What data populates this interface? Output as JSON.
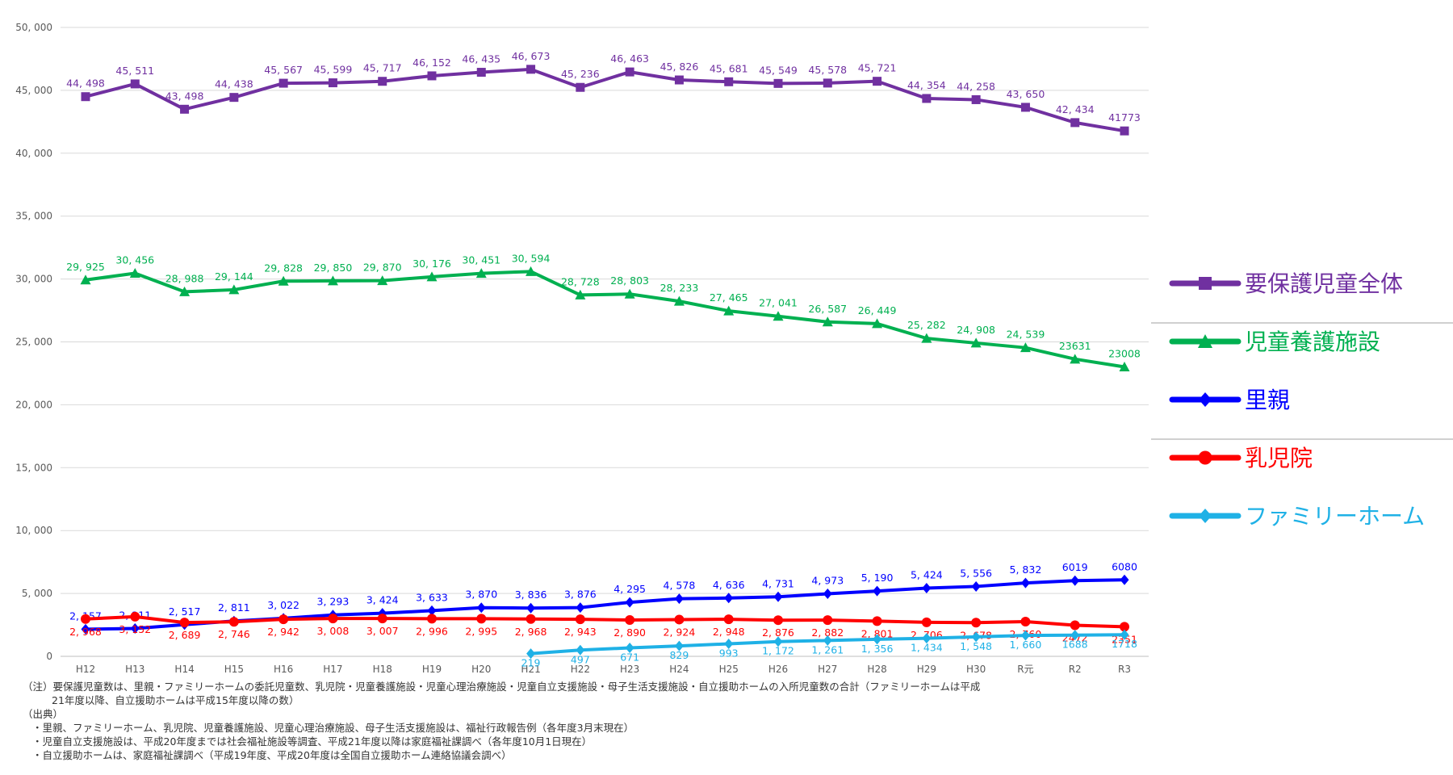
{
  "chart_data": {
    "type": "line",
    "categories": [
      "H12",
      "H13",
      "H14",
      "H15",
      "H16",
      "H17",
      "H18",
      "H19",
      "H20",
      "H21",
      "H22",
      "H23",
      "H24",
      "H25",
      "H26",
      "H27",
      "H28",
      "H29",
      "H30",
      "R元",
      "R2",
      "R3"
    ],
    "ylim": [
      0,
      50000
    ],
    "yticks": [
      "0",
      "5, 000",
      "10, 000",
      "15, 000",
      "20, 000",
      "25, 000",
      "30, 000",
      "35, 000",
      "40, 000",
      "45, 000",
      "50, 000"
    ],
    "grid": true,
    "legend_position": "right",
    "series": [
      {
        "name": "要保護児童全体",
        "color": "#7030a0",
        "marker": "square",
        "values": [
          44498,
          45511,
          43498,
          44438,
          45567,
          45599,
          45717,
          46152,
          46435,
          46673,
          45236,
          46463,
          45826,
          45681,
          45549,
          45578,
          45721,
          44354,
          44258,
          43650,
          42434,
          41773
        ],
        "labels": [
          "44, 498",
          "45, 511",
          "43, 498",
          "44, 438",
          "45, 567",
          "45, 599",
          "45, 717",
          "46, 152",
          "46, 435",
          "46, 673",
          "45, 236",
          "46, 463",
          "45, 826",
          "45, 681",
          "45, 549",
          "45, 578",
          "45, 721",
          "44, 354",
          "44, 258",
          "43, 650",
          "42, 434",
          "41773"
        ]
      },
      {
        "name": "児童養護施設",
        "color": "#00b050",
        "marker": "triangle",
        "values": [
          29925,
          30456,
          28988,
          29144,
          29828,
          29850,
          29870,
          30176,
          30451,
          30594,
          28728,
          28803,
          28233,
          27465,
          27041,
          26587,
          26449,
          25282,
          24908,
          24539,
          23631,
          23008
        ],
        "labels": [
          "29, 925",
          "30, 456",
          "28, 988",
          "29, 144",
          "29, 828",
          "29, 850",
          "29, 870",
          "30, 176",
          "30, 451",
          "30, 594",
          "28, 728",
          "28, 803",
          "28, 233",
          "27, 465",
          "27, 041",
          "26, 587",
          "26, 449",
          "25, 282",
          "24, 908",
          "24, 539",
          "23631",
          "23008"
        ]
      },
      {
        "name": "里親",
        "color": "#0000ff",
        "marker": "diamond",
        "values": [
          2157,
          2211,
          2517,
          2811,
          3022,
          3293,
          3424,
          3633,
          3870,
          3836,
          3876,
          4295,
          4578,
          4636,
          4731,
          4973,
          5190,
          5424,
          5556,
          5832,
          6019,
          6080
        ],
        "labels": [
          "2, 157",
          "2, 211",
          "2, 517",
          "2, 811",
          "3, 022",
          "3, 293",
          "3, 424",
          "3, 633",
          "3, 870",
          "3, 836",
          "3, 876",
          "4, 295",
          "4, 578",
          "4, 636",
          "4, 731",
          "4, 973",
          "5, 190",
          "5, 424",
          "5, 556",
          "5, 832",
          "6019",
          "6080"
        ]
      },
      {
        "name": "乳児院",
        "color": "#ff0000",
        "marker": "circle",
        "values": [
          2968,
          3152,
          2689,
          2746,
          2942,
          3008,
          3007,
          2996,
          2995,
          2968,
          2943,
          2890,
          2924,
          2948,
          2876,
          2882,
          2801,
          2706,
          2678,
          2760,
          2472,
          2351
        ],
        "labels": [
          "2, 968",
          "3, 152",
          "2, 689",
          "2, 746",
          "2, 942",
          "3, 008",
          "3, 007",
          "2, 996",
          "2, 995",
          "2, 968",
          "2, 943",
          "2, 890",
          "2, 924",
          "2, 948",
          "2, 876",
          "2, 882",
          "2, 801",
          "2, 706",
          "2, 678",
          "2, 760",
          "2472",
          "2351"
        ]
      },
      {
        "name": "ファミリーホーム",
        "color": "#1fb1e6",
        "marker": "diamond",
        "values": [
          null,
          null,
          null,
          null,
          null,
          null,
          null,
          null,
          null,
          219,
          497,
          671,
          829,
          993,
          1172,
          1261,
          1356,
          1434,
          1548,
          1660,
          1688,
          1718
        ],
        "labels": [
          "",
          "",
          "",
          "",
          "",
          "",
          "",
          "",
          "",
          "219",
          "497",
          "671",
          "829",
          "993",
          "1, 172",
          "1, 261",
          "1, 356",
          "1, 434",
          "1, 548",
          "1, 660",
          "1688",
          "1718"
        ]
      }
    ]
  },
  "notes": {
    "line1": "（注）要保護児童数は、里親・ファミリーホームの委託児童数、乳児院・児童養護施設・児童心理治療施設・児童自立支援施設・母子生活支援施設・自立援助ホームの入所児童数の合計（ファミリーホームは平成",
    "line2": "21年度以降、自立援助ホームは平成15年度以降の数）",
    "line3": "（出典）",
    "line4": "・里親、ファミリーホーム、乳児院、児童養護施設、児童心理治療施設、母子生活支援施設は、福祉行政報告例（各年度3月末現在）",
    "line5": "・児童自立支援施設は、平成20年度までは社会福祉施設等調査、平成21年度以降は家庭福祉課調べ（各年度10月1日現在）",
    "line6": "・自立援助ホームは、家庭福祉課調べ（平成19年度、平成20年度は全国自立援助ホーム連絡協議会調べ）"
  }
}
